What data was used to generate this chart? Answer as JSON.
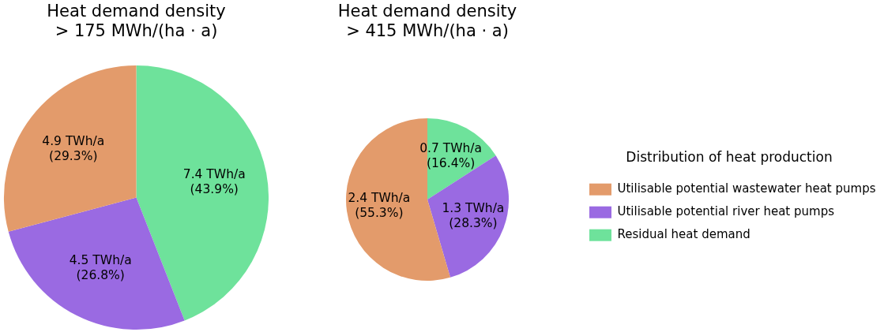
{
  "chart_data": [
    {
      "type": "pie",
      "title": "Heat demand density\n> 175 MWh/(ha · a)",
      "categories": [
        null,
        null,
        null
      ],
      "values": [
        4.9,
        4.5,
        7.4
      ],
      "colors": [
        "#e39b6b",
        "#9a6ae2",
        "#6ee29b"
      ],
      "value_labels": [
        "4.9 TWh/a\n(29.3%)",
        "4.5 TWh/a\n(26.8%)",
        "7.4 TWh/a\n(43.9%)"
      ],
      "legend": false
    },
    {
      "type": "pie",
      "title": "Heat demand density\n> 415 MWh/(ha · a)",
      "legend_title": "Distribution of heat production",
      "categories": [
        "Utilisable potential wastewater heat pumps",
        "Utilisable potential river heat pumps",
        "Residual heat demand"
      ],
      "values": [
        2.4,
        1.3,
        0.7
      ],
      "colors": [
        "#e39b6b",
        "#9a6ae2",
        "#6ee29b"
      ],
      "value_labels": [
        "2.4 TWh/a\n(55.3%)",
        "1.3 TWh/a\n(28.3%)",
        "0.7 TWh/a\n(16.4%)"
      ],
      "legend": "right"
    }
  ]
}
